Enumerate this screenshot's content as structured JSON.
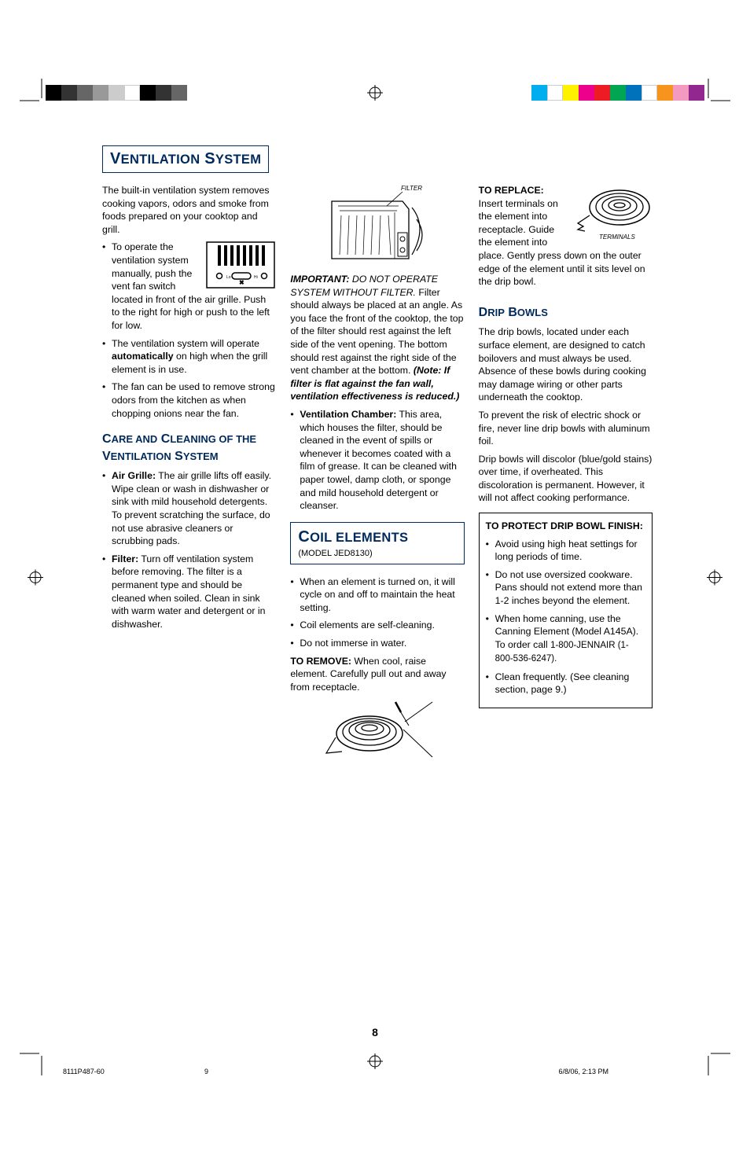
{
  "printerBars": {
    "leftColors": [
      "#000000",
      "#333333",
      "#666666",
      "#999999",
      "#cccccc",
      "#ffffff",
      "#000000",
      "#333333",
      "#666666"
    ],
    "rightColors": [
      "#00aeef",
      "#ffffff",
      "#fff200",
      "#ec008c",
      "#ed1c24",
      "#00a651",
      "#0072bc",
      "#ffffff",
      "#f7941d",
      "#f49ac1",
      "#92278f"
    ]
  },
  "sectionTitles": {
    "ventilation": [
      "V",
      "ENTILATION",
      " S",
      "YSTEM"
    ],
    "careClean": [
      "C",
      "ARE AND",
      " C",
      "LEANING OF THE",
      " V",
      "ENTILATION",
      " S",
      "YSTEM"
    ],
    "coilElements": [
      "C",
      "OIL ELEMENTS"
    ],
    "coilModel": "(MODEL JED8130)",
    "dripBowls": [
      "D",
      "RIP",
      " B",
      "OWLS"
    ]
  },
  "col1": {
    "intro": "The built-in ventilation system removes cooking vapors, odors and smoke from foods prepared on your cooktop and grill.",
    "b1a": "To operate the ventilation system manually, push the vent fan",
    "b1b": "switch located in front of the air grille. Push to the right for high or push to the left for low.",
    "b2a": "The ventilation system will operate ",
    "b2bold": "automatically",
    "b2b": " on high when the grill element is in use.",
    "b3": "The fan can be used to remove strong odors from the kitchen as when chopping onions near the fan.",
    "care1label": "Air Grille:",
    "care1": " The air grille lifts off easily. Wipe clean or wash in dishwasher or sink with mild household detergents. To prevent scratching the surface, do not use abrasive cleaners or scrubbing pads.",
    "care2label": "Filter:",
    "care2": " Turn off ventilation system before removing. The filter is a permanent type and should be cleaned when soiled. Clean in sink with warm water and detergent or in dishwasher."
  },
  "col2": {
    "filterLabel": "FILTER",
    "importantLabel": "IMPORTANT:",
    "importantItalic": " DO NOT OPERATE SYSTEM WITHOUT FILTER.",
    "importantRest": " Filter should always be placed at an angle. As you face the front of the cooktop, the top of the filter should rest against the left side of the vent opening. The bottom should rest against the right side of the vent chamber at the bottom.  ",
    "importantNote": "(Note: If filter is flat against the fan wall, ventilation effectiveness is reduced.)",
    "ventChamberLabel": "Ventilation Chamber:",
    "ventChamber": " This area, which houses the filter, should be cleaned in the event of spills or whenever it becomes coated with a film of grease. It can be cleaned with paper towel, damp cloth, or sponge and mild household detergent or cleanser.",
    "coil1": "When an element is turned on, it will cycle on and off to maintain the heat setting.",
    "coil2": "Coil elements are self-cleaning.",
    "coil3": "Do not immerse in water.",
    "removeLabel": "TO REMOVE:",
    "removeText": "  When cool, raise element.  Carefully pull out and away from receptacle."
  },
  "col3": {
    "replaceLabel": "TO REPLACE:",
    "replaceText": "  Insert terminals on the element into receptacle.  Guide the element into place.   Gently press down on the outer edge of the element until it sits level on the drip bowl.",
    "terminalsLabel": "TERMINALS",
    "drip1": "The drip bowls, located under each surface element, are designed to catch boilovers and must always be used. Absence of these bowls during cooking may damage wiring or other parts underneath the cooktop.",
    "drip2": "To prevent the risk of electric shock or fire, never line drip bowls with aluminum foil.",
    "drip3": "Drip bowls will discolor (blue/gold stains) over time, if overheated. This discoloration is permanent. However, it will not affect cooking performance.",
    "boxTitle": "TO PROTECT DRIP BOWL FINISH:",
    "box1": "Avoid using high heat settings for long periods of time.",
    "box2": "Do not use oversized cookware. Pans should not extend more than  1-2 inches beyond the element.",
    "box3a": "When home canning, use the Canning Element (Model A145A). To order call ",
    "box3b": "1-800-JENNAIR (1-800-536-6247).",
    "box4": "Clean frequently. (See cleaning section, page 9.)"
  },
  "pageNumber": "8",
  "footer": {
    "left": "8111P487-60",
    "mid": "9",
    "right": "6/8/06, 2:13 PM"
  }
}
